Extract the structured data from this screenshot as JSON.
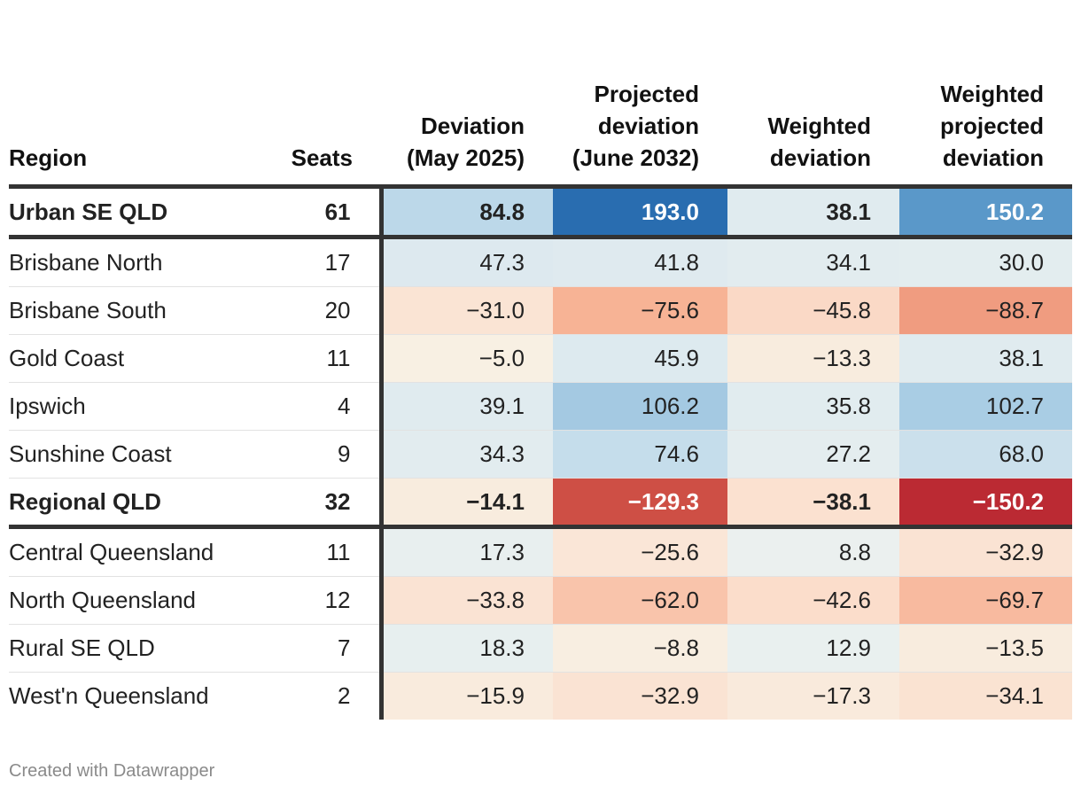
{
  "headers": {
    "region": "Region",
    "seats": "Seats",
    "deviation": "Deviation (May 2025)",
    "projected": "Projected deviation (June 2032)",
    "weighted": "Weighted deviation",
    "weighted_projected": "Weighted projected deviation"
  },
  "colors": {
    "blue_strong": "#2166ac",
    "red_strong": "#b2182b",
    "neutral": "#f7f7f7"
  },
  "chart_data": {
    "type": "table",
    "columns": [
      "Region",
      "Seats",
      "Deviation (May 2025)",
      "Projected deviation (June 2032)",
      "Weighted deviation",
      "Weighted projected deviation"
    ],
    "rows": [
      {
        "region": "Urban SE QLD",
        "seats": "61",
        "dev": 84.8,
        "proj": 193.0,
        "wdev": 38.1,
        "wproj": 150.2,
        "group": true
      },
      {
        "region": "Brisbane North",
        "seats": "17",
        "dev": 47.3,
        "proj": 41.8,
        "wdev": 34.1,
        "wproj": 30.0,
        "group": false
      },
      {
        "region": "Brisbane South",
        "seats": "20",
        "dev": -31.0,
        "proj": -75.6,
        "wdev": -45.8,
        "wproj": -88.7,
        "group": false
      },
      {
        "region": "Gold Coast",
        "seats": "11",
        "dev": -5.0,
        "proj": 45.9,
        "wdev": -13.3,
        "wproj": 38.1,
        "group": false
      },
      {
        "region": "Ipswich",
        "seats": "4",
        "dev": 39.1,
        "proj": 106.2,
        "wdev": 35.8,
        "wproj": 102.7,
        "group": false
      },
      {
        "region": "Sunshine Coast",
        "seats": "9",
        "dev": 34.3,
        "proj": 74.6,
        "wdev": 27.2,
        "wproj": 68.0,
        "group": false
      },
      {
        "region": "Regional QLD",
        "seats": "32",
        "dev": -14.1,
        "proj": -129.3,
        "wdev": -38.1,
        "wproj": -150.2,
        "group": true
      },
      {
        "region": "Central Queensland",
        "seats": "11",
        "dev": 17.3,
        "proj": -25.6,
        "wdev": 8.8,
        "wproj": -32.9,
        "group": false
      },
      {
        "region": "North Queensland",
        "seats": "12",
        "dev": -33.8,
        "proj": -62.0,
        "wdev": -42.6,
        "wproj": -69.7,
        "group": false
      },
      {
        "region": "Rural SE QLD",
        "seats": "7",
        "dev": 18.3,
        "proj": -8.8,
        "wdev": 12.9,
        "wproj": -13.5,
        "group": false
      },
      {
        "region": "West'n Queensland",
        "seats": "2",
        "dev": -15.9,
        "proj": -32.9,
        "wdev": -17.3,
        "wproj": -34.1,
        "group": false
      }
    ],
    "color_scale": {
      "min": -160,
      "max": 200
    }
  },
  "footer": "Created with Datawrapper"
}
